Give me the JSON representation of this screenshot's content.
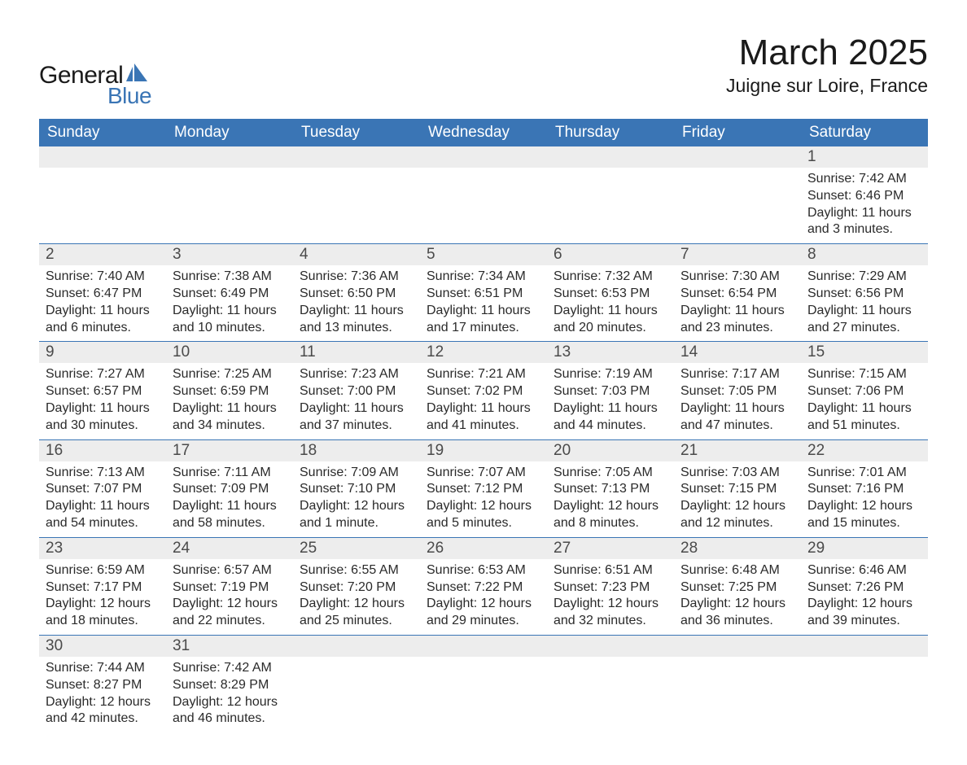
{
  "brand": {
    "general": "General",
    "blue": "Blue",
    "sail_color": "#3a75b5",
    "text_dark": "#1a1a1a"
  },
  "title": {
    "month": "March 2025",
    "location": "Juigne sur Loire, France"
  },
  "style": {
    "header_bg": "#3a75b5",
    "header_fg": "#ffffff",
    "daynum_bg": "#ededed",
    "daynum_fg": "#4a4a4a",
    "row_border": "#3a75b5",
    "body_text": "#2a2a2a",
    "page_bg": "#ffffff",
    "header_fontsize": 19,
    "title_fontsize": 44,
    "location_fontsize": 23,
    "body_fontsize": 16
  },
  "weekdays": [
    "Sunday",
    "Monday",
    "Tuesday",
    "Wednesday",
    "Thursday",
    "Friday",
    "Saturday"
  ],
  "weeks": [
    [
      null,
      null,
      null,
      null,
      null,
      null,
      {
        "n": "1",
        "sunrise": "Sunrise: 7:42 AM",
        "sunset": "Sunset: 6:46 PM",
        "daylight": "Daylight: 11 hours and 3 minutes."
      }
    ],
    [
      {
        "n": "2",
        "sunrise": "Sunrise: 7:40 AM",
        "sunset": "Sunset: 6:47 PM",
        "daylight": "Daylight: 11 hours and 6 minutes."
      },
      {
        "n": "3",
        "sunrise": "Sunrise: 7:38 AM",
        "sunset": "Sunset: 6:49 PM",
        "daylight": "Daylight: 11 hours and 10 minutes."
      },
      {
        "n": "4",
        "sunrise": "Sunrise: 7:36 AM",
        "sunset": "Sunset: 6:50 PM",
        "daylight": "Daylight: 11 hours and 13 minutes."
      },
      {
        "n": "5",
        "sunrise": "Sunrise: 7:34 AM",
        "sunset": "Sunset: 6:51 PM",
        "daylight": "Daylight: 11 hours and 17 minutes."
      },
      {
        "n": "6",
        "sunrise": "Sunrise: 7:32 AM",
        "sunset": "Sunset: 6:53 PM",
        "daylight": "Daylight: 11 hours and 20 minutes."
      },
      {
        "n": "7",
        "sunrise": "Sunrise: 7:30 AM",
        "sunset": "Sunset: 6:54 PM",
        "daylight": "Daylight: 11 hours and 23 minutes."
      },
      {
        "n": "8",
        "sunrise": "Sunrise: 7:29 AM",
        "sunset": "Sunset: 6:56 PM",
        "daylight": "Daylight: 11 hours and 27 minutes."
      }
    ],
    [
      {
        "n": "9",
        "sunrise": "Sunrise: 7:27 AM",
        "sunset": "Sunset: 6:57 PM",
        "daylight": "Daylight: 11 hours and 30 minutes."
      },
      {
        "n": "10",
        "sunrise": "Sunrise: 7:25 AM",
        "sunset": "Sunset: 6:59 PM",
        "daylight": "Daylight: 11 hours and 34 minutes."
      },
      {
        "n": "11",
        "sunrise": "Sunrise: 7:23 AM",
        "sunset": "Sunset: 7:00 PM",
        "daylight": "Daylight: 11 hours and 37 minutes."
      },
      {
        "n": "12",
        "sunrise": "Sunrise: 7:21 AM",
        "sunset": "Sunset: 7:02 PM",
        "daylight": "Daylight: 11 hours and 41 minutes."
      },
      {
        "n": "13",
        "sunrise": "Sunrise: 7:19 AM",
        "sunset": "Sunset: 7:03 PM",
        "daylight": "Daylight: 11 hours and 44 minutes."
      },
      {
        "n": "14",
        "sunrise": "Sunrise: 7:17 AM",
        "sunset": "Sunset: 7:05 PM",
        "daylight": "Daylight: 11 hours and 47 minutes."
      },
      {
        "n": "15",
        "sunrise": "Sunrise: 7:15 AM",
        "sunset": "Sunset: 7:06 PM",
        "daylight": "Daylight: 11 hours and 51 minutes."
      }
    ],
    [
      {
        "n": "16",
        "sunrise": "Sunrise: 7:13 AM",
        "sunset": "Sunset: 7:07 PM",
        "daylight": "Daylight: 11 hours and 54 minutes."
      },
      {
        "n": "17",
        "sunrise": "Sunrise: 7:11 AM",
        "sunset": "Sunset: 7:09 PM",
        "daylight": "Daylight: 11 hours and 58 minutes."
      },
      {
        "n": "18",
        "sunrise": "Sunrise: 7:09 AM",
        "sunset": "Sunset: 7:10 PM",
        "daylight": "Daylight: 12 hours and 1 minute."
      },
      {
        "n": "19",
        "sunrise": "Sunrise: 7:07 AM",
        "sunset": "Sunset: 7:12 PM",
        "daylight": "Daylight: 12 hours and 5 minutes."
      },
      {
        "n": "20",
        "sunrise": "Sunrise: 7:05 AM",
        "sunset": "Sunset: 7:13 PM",
        "daylight": "Daylight: 12 hours and 8 minutes."
      },
      {
        "n": "21",
        "sunrise": "Sunrise: 7:03 AM",
        "sunset": "Sunset: 7:15 PM",
        "daylight": "Daylight: 12 hours and 12 minutes."
      },
      {
        "n": "22",
        "sunrise": "Sunrise: 7:01 AM",
        "sunset": "Sunset: 7:16 PM",
        "daylight": "Daylight: 12 hours and 15 minutes."
      }
    ],
    [
      {
        "n": "23",
        "sunrise": "Sunrise: 6:59 AM",
        "sunset": "Sunset: 7:17 PM",
        "daylight": "Daylight: 12 hours and 18 minutes."
      },
      {
        "n": "24",
        "sunrise": "Sunrise: 6:57 AM",
        "sunset": "Sunset: 7:19 PM",
        "daylight": "Daylight: 12 hours and 22 minutes."
      },
      {
        "n": "25",
        "sunrise": "Sunrise: 6:55 AM",
        "sunset": "Sunset: 7:20 PM",
        "daylight": "Daylight: 12 hours and 25 minutes."
      },
      {
        "n": "26",
        "sunrise": "Sunrise: 6:53 AM",
        "sunset": "Sunset: 7:22 PM",
        "daylight": "Daylight: 12 hours and 29 minutes."
      },
      {
        "n": "27",
        "sunrise": "Sunrise: 6:51 AM",
        "sunset": "Sunset: 7:23 PM",
        "daylight": "Daylight: 12 hours and 32 minutes."
      },
      {
        "n": "28",
        "sunrise": "Sunrise: 6:48 AM",
        "sunset": "Sunset: 7:25 PM",
        "daylight": "Daylight: 12 hours and 36 minutes."
      },
      {
        "n": "29",
        "sunrise": "Sunrise: 6:46 AM",
        "sunset": "Sunset: 7:26 PM",
        "daylight": "Daylight: 12 hours and 39 minutes."
      }
    ],
    [
      {
        "n": "30",
        "sunrise": "Sunrise: 7:44 AM",
        "sunset": "Sunset: 8:27 PM",
        "daylight": "Daylight: 12 hours and 42 minutes."
      },
      {
        "n": "31",
        "sunrise": "Sunrise: 7:42 AM",
        "sunset": "Sunset: 8:29 PM",
        "daylight": "Daylight: 12 hours and 46 minutes."
      },
      null,
      null,
      null,
      null,
      null
    ]
  ]
}
